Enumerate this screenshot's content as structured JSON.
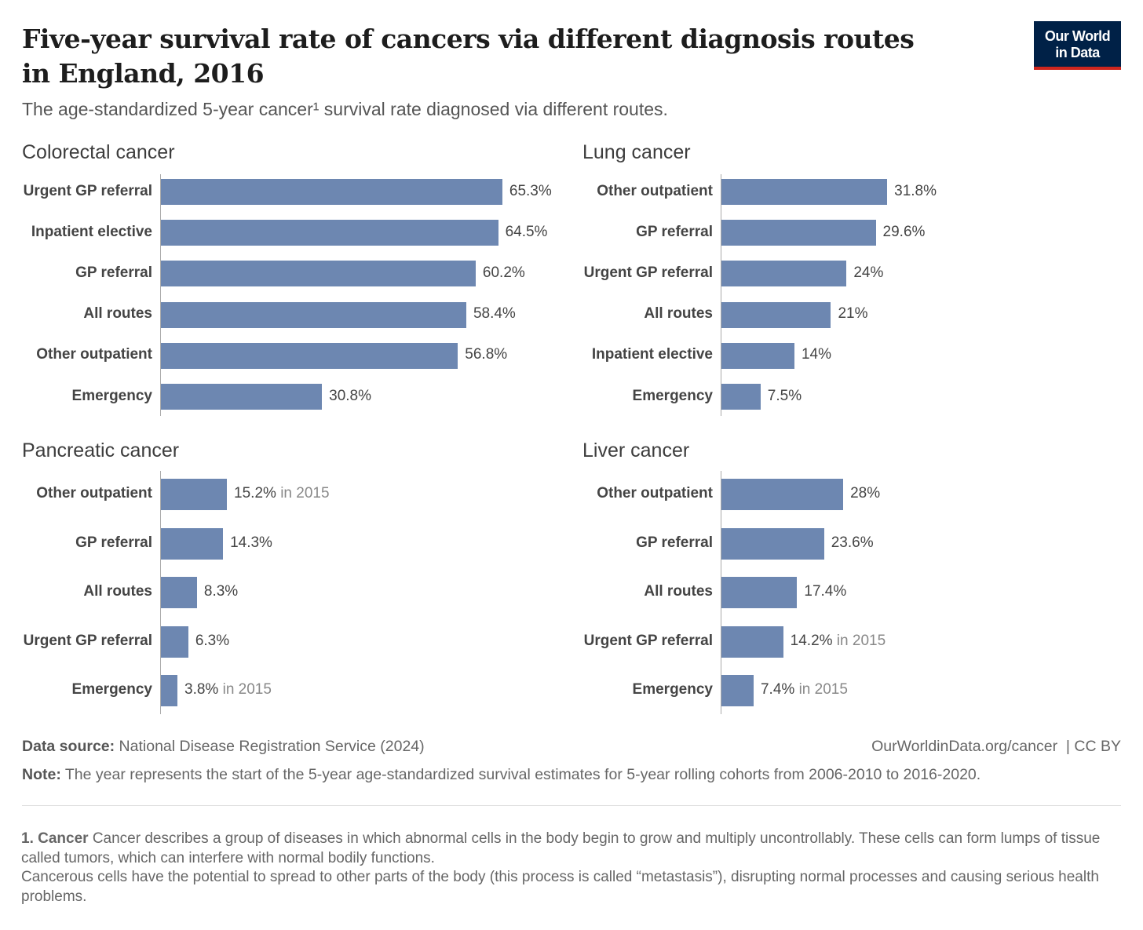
{
  "header": {
    "title": "Five-year survival rate of cancers via different diagnosis routes in England, 2016",
    "subtitle": "The age-standardized 5-year cancer¹ survival rate diagnosed via different routes.",
    "logo": "Our World in Data"
  },
  "colors": {
    "bar": "#6d87b1",
    "logo_bg": "#002147",
    "logo_accent": "#ce261e"
  },
  "chart_data": [
    {
      "type": "bar",
      "title": "Colorectal cancer",
      "unit": "%",
      "categories": [
        "Urgent GP referral",
        "Inpatient elective",
        "GP referral",
        "All routes",
        "Other outpatient",
        "Emergency"
      ],
      "values": [
        65.3,
        64.5,
        60.2,
        58.4,
        56.8,
        30.8
      ],
      "labels": [
        "65.3%",
        "64.5%",
        "60.2%",
        "58.4%",
        "56.8%",
        "30.8%"
      ],
      "notes": [
        "",
        "",
        "",
        "",
        "",
        ""
      ]
    },
    {
      "type": "bar",
      "title": "Lung cancer",
      "unit": "%",
      "categories": [
        "Other outpatient",
        "GP referral",
        "Urgent GP referral",
        "All routes",
        "Inpatient elective",
        "Emergency"
      ],
      "values": [
        31.8,
        29.6,
        24,
        21,
        14,
        7.5
      ],
      "labels": [
        "31.8%",
        "29.6%",
        "24%",
        "21%",
        "14%",
        "7.5%"
      ],
      "notes": [
        "",
        "",
        "",
        "",
        "",
        ""
      ]
    },
    {
      "type": "bar",
      "title": "Pancreatic cancer",
      "unit": "%",
      "categories": [
        "Other outpatient",
        "GP referral",
        "All routes",
        "Urgent GP referral",
        "Emergency"
      ],
      "values": [
        15.2,
        14.3,
        8.3,
        6.3,
        3.8
      ],
      "labels": [
        "15.2%",
        "14.3%",
        "8.3%",
        "6.3%",
        "3.8%"
      ],
      "notes": [
        "in 2015",
        "",
        "",
        "",
        "in 2015"
      ]
    },
    {
      "type": "bar",
      "title": "Liver cancer",
      "unit": "%",
      "categories": [
        "Other outpatient",
        "GP referral",
        "All routes",
        "Urgent GP referral",
        "Emergency"
      ],
      "values": [
        28,
        23.6,
        17.4,
        14.2,
        7.4
      ],
      "labels": [
        "28%",
        "23.6%",
        "17.4%",
        "14.2%",
        "7.4%"
      ],
      "notes": [
        "",
        "",
        "",
        "in 2015",
        "in 2015"
      ]
    }
  ],
  "footer": {
    "source_label": "Data source:",
    "source": " National Disease Registration Service (2024)",
    "url": "OurWorldinData.org/cancer  | CC BY",
    "note_label": "Note:",
    "note": " The year represents the start of the 5-year age-standardized survival estimates for 5-year rolling cohorts from 2006-2010 to 2016-2020.",
    "footnote_label": "1. Cancer",
    "footnote1": " Cancer describes a group of diseases in which abnormal cells in the body begin to grow and multiply uncontrollably. These cells can form lumps of tissue called tumors, which can interfere with normal bodily functions.",
    "footnote2": "Cancerous cells have the potential to spread to other parts of the body (this process is called “metastasis”), disrupting normal processes and causing serious health problems."
  }
}
